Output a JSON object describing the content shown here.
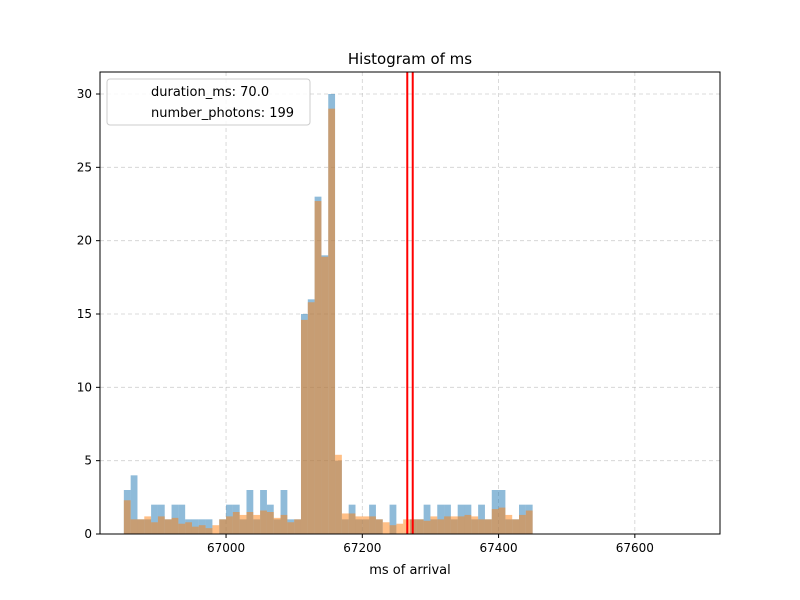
{
  "chart_data": {
    "type": "bar",
    "title": "Histogram of ms",
    "xlabel": "ms of arrival",
    "ylabel": "",
    "xlim": [
      66815,
      67725
    ],
    "ylim": [
      0,
      31.5
    ],
    "x_ticks": [
      67000,
      67200,
      67400,
      67600
    ],
    "y_ticks": [
      0,
      5,
      10,
      15,
      20,
      25,
      30
    ],
    "grid": true,
    "legend_position": "top-left",
    "legend": [
      {
        "label": "duration_ms: 70.0"
      },
      {
        "label": "number_photons: 199"
      }
    ],
    "bin_start": 66850,
    "bin_width": 10,
    "vertical_lines": [
      67266,
      67274
    ],
    "colors": {
      "series_a": "#1f77b4",
      "series_b": "#ff7f0e",
      "vertical_line": "#ff0000",
      "grid": "#b0b0b0"
    },
    "series": [
      {
        "values": [
          3,
          4,
          1,
          1,
          2,
          2,
          1,
          2,
          2,
          1,
          1,
          1,
          1,
          0,
          1,
          2,
          2,
          1,
          3,
          1,
          3,
          2,
          1,
          3,
          1,
          1,
          15,
          16,
          23,
          19,
          30,
          5,
          1,
          2,
          1,
          1,
          2,
          1,
          0,
          2,
          0,
          0,
          1,
          1,
          2,
          1,
          2,
          2,
          1,
          2,
          2,
          1,
          2,
          1,
          3,
          3,
          1,
          1,
          2,
          2
        ]
      },
      {
        "values": [
          2.3,
          1.0,
          1.0,
          1.2,
          0.8,
          1.2,
          1.0,
          1.1,
          0.7,
          0.8,
          0.5,
          0.6,
          0.4,
          0.6,
          1.0,
          1.2,
          1.5,
          1.3,
          1.5,
          1.3,
          1.6,
          1.5,
          1.1,
          1.3,
          0.8,
          1.0,
          14.6,
          15.8,
          22.7,
          18.9,
          29.0,
          5.4,
          1.4,
          1.4,
          1.2,
          1.2,
          1.2,
          1.0,
          0.8,
          0.6,
          0.7,
          1.0,
          1.0,
          1.0,
          0.9,
          1.2,
          1.0,
          1.2,
          1.2,
          1.2,
          1.3,
          1.2,
          1.0,
          1.0,
          1.7,
          1.8,
          1.3,
          1.0,
          1.3,
          1.6
        ]
      }
    ]
  }
}
